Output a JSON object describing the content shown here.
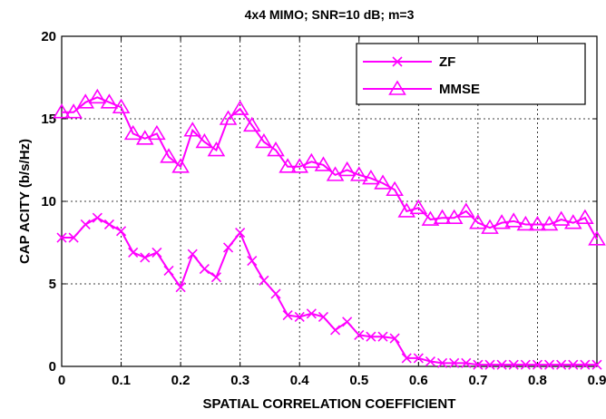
{
  "chart_data": {
    "type": "line",
    "title": "4x4 MIMO; SNR=10 dB; m=3",
    "xlabel": "SPATIAL CORRELATION COEFFICIENT",
    "ylabel": "CAP ACITY  (b/s/Hz)",
    "xlim": [
      0,
      0.9
    ],
    "ylim": [
      0,
      20
    ],
    "xticks": [
      0,
      0.1,
      0.2,
      0.3,
      0.4,
      0.5,
      0.6,
      0.7,
      0.8,
      0.9
    ],
    "yticks": [
      0,
      5,
      10,
      15,
      20
    ],
    "xtick_labels": [
      "0",
      "0.1",
      "0.2",
      "0.3",
      "0.4",
      "0.5",
      "0.6",
      "0.7",
      "0.8",
      "0.9"
    ],
    "ytick_labels": [
      "0",
      "5",
      "10",
      "15",
      "20"
    ],
    "grid": true,
    "legend_position": "top-right",
    "colors": {
      "series": "#ff00ff",
      "axes": "#000000"
    },
    "x": [
      0,
      0.02,
      0.04,
      0.06,
      0.08,
      0.1,
      0.12,
      0.14,
      0.16,
      0.18,
      0.2,
      0.22,
      0.24,
      0.26,
      0.28,
      0.3,
      0.32,
      0.34,
      0.36,
      0.38,
      0.4,
      0.42,
      0.44,
      0.46,
      0.48,
      0.5,
      0.52,
      0.54,
      0.56,
      0.58,
      0.6,
      0.62,
      0.64,
      0.66,
      0.68,
      0.7,
      0.72,
      0.74,
      0.76,
      0.78,
      0.8,
      0.82,
      0.84,
      0.86,
      0.88,
      0.9
    ],
    "series": [
      {
        "name": "ZF",
        "marker": "x",
        "values": [
          7.8,
          7.8,
          8.6,
          9.0,
          8.6,
          8.2,
          6.9,
          6.6,
          6.9,
          5.8,
          4.8,
          6.8,
          5.9,
          5.4,
          7.2,
          8.1,
          6.4,
          5.2,
          4.4,
          3.1,
          3.0,
          3.2,
          3.0,
          2.2,
          2.7,
          1.9,
          1.8,
          1.8,
          1.7,
          0.5,
          0.5,
          0.3,
          0.2,
          0.2,
          0.2,
          0.1,
          0.1,
          0.1,
          0.1,
          0.1,
          0.1,
          0.1,
          0.1,
          0.1,
          0.1,
          0.1
        ]
      },
      {
        "name": "MMSE",
        "marker": "triangle",
        "values": [
          15.4,
          15.4,
          16.0,
          16.3,
          16.0,
          15.7,
          14.1,
          13.8,
          14.1,
          12.7,
          12.1,
          14.3,
          13.6,
          13.1,
          15.0,
          15.6,
          14.6,
          13.6,
          13.1,
          12.1,
          12.1,
          12.4,
          12.2,
          11.6,
          11.9,
          11.6,
          11.4,
          11.1,
          10.7,
          9.4,
          9.6,
          8.9,
          9.0,
          9.0,
          9.4,
          8.7,
          8.4,
          8.7,
          8.8,
          8.6,
          8.6,
          8.6,
          8.9,
          8.7,
          9.0,
          7.7
        ]
      }
    ]
  }
}
